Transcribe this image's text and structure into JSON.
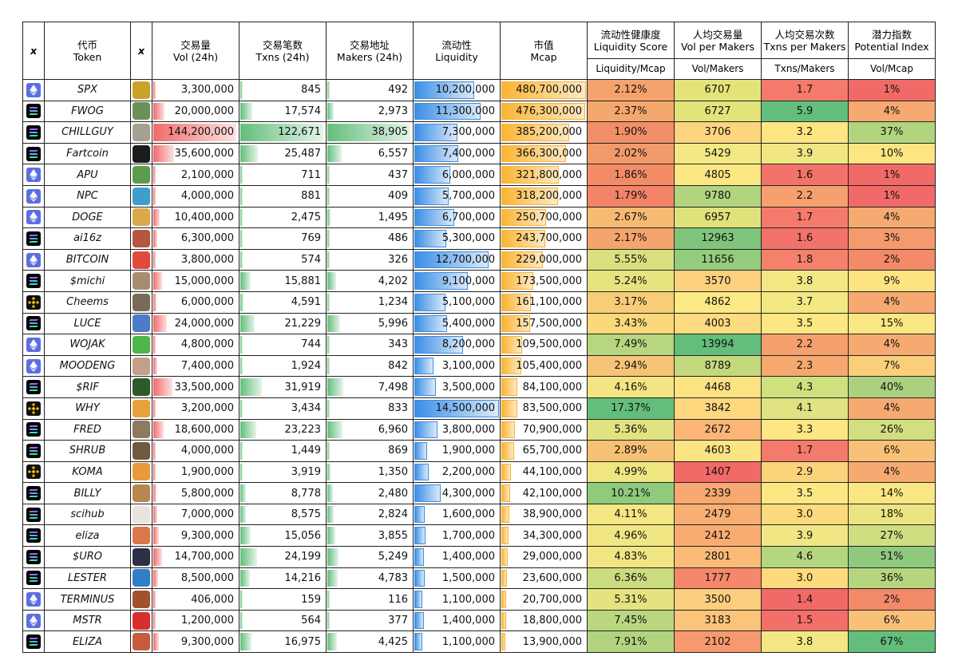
{
  "headers": {
    "chain": "x",
    "token": [
      "代币",
      "Token"
    ],
    "logo": "x",
    "vol": [
      "交易量",
      "Vol (24h)"
    ],
    "txns": [
      "交易笔数",
      "Txns (24h)"
    ],
    "makers": [
      "交易地址",
      "Makers (24h)"
    ],
    "liq": [
      "流动性",
      "Liquidity"
    ],
    "mcap": [
      "市值",
      "Mcap"
    ],
    "score": [
      "流动性健康度",
      "Liquidity Score"
    ],
    "vpm": [
      "人均交易量",
      "Vol per Makers"
    ],
    "tpm": [
      "人均交易次数",
      "Txns per Makers"
    ],
    "pot": [
      "潜力指数",
      "Potential Index"
    ],
    "formula": {
      "score": "Liquidity/Mcap",
      "vpm": "Vol/Makers",
      "tpm": "Txns/Makers",
      "pot": "Vol/Mcap"
    }
  },
  "rows": [
    {
      "chain": "eth",
      "token": "SPX",
      "logo_color": "#c9a227",
      "vol": "3,300,000",
      "vol_n": 3300000,
      "txns": "845",
      "txns_n": 845,
      "makers": "492",
      "makers_n": 492,
      "liq": "10,200,000",
      "liq_n": 10200000,
      "mcap": "480,700,000",
      "mcap_n": 480700000,
      "score": "2.12%",
      "score_color": "#f4a36c",
      "vpm": "6707",
      "vpm_color": "#e3e37a",
      "tpm": "1.7",
      "tpm_color": "#f47a6c",
      "pot": "1%",
      "pot_color": "#f26a68"
    },
    {
      "chain": "sol",
      "token": "FWOG",
      "logo_color": "#6b8f56",
      "vol": "20,000,000",
      "vol_n": 20000000,
      "txns": "17,574",
      "txns_n": 17574,
      "makers": "2,973",
      "makers_n": 2973,
      "liq": "11,300,000",
      "liq_n": 11300000,
      "mcap": "476,300,000",
      "mcap_n": 476300000,
      "score": "2.37%",
      "score_color": "#f4a86d",
      "vpm": "6727",
      "vpm_color": "#e2e37a",
      "tpm": "5.9",
      "tpm_color": "#63be7b",
      "pot": "4%",
      "pot_color": "#f6a970"
    },
    {
      "chain": "sol",
      "token": "CHILLGUY",
      "logo_color": "#a5a092",
      "vol": "144,200,000",
      "vol_n": 144200000,
      "txns": "122,671",
      "txns_n": 122671,
      "makers": "38,905",
      "makers_n": 38905,
      "liq": "7,300,000",
      "liq_n": 7300000,
      "mcap": "385,200,000",
      "mcap_n": 385200000,
      "score": "1.90%",
      "score_color": "#f38f68",
      "vpm": "3706",
      "vpm_color": "#fdd57f",
      "tpm": "3.2",
      "tpm_color": "#fde582",
      "pot": "37%",
      "pot_color": "#b3d47f"
    },
    {
      "chain": "sol",
      "token": "Fartcoin",
      "logo_color": "#1c1c1c",
      "vol": "35,600,000",
      "vol_n": 35600000,
      "txns": "25,487",
      "txns_n": 25487,
      "makers": "6,557",
      "makers_n": 6557,
      "liq": "7,400,000",
      "liq_n": 7400000,
      "mcap": "366,300,000",
      "mcap_n": 366300000,
      "score": "2.02%",
      "score_color": "#f39a6a",
      "vpm": "5429",
      "vpm_color": "#f3e883",
      "tpm": "3.9",
      "tpm_color": "#f0e784",
      "pot": "10%",
      "pot_color": "#fde582"
    },
    {
      "chain": "eth",
      "token": "APU",
      "logo_color": "#5a9d4e",
      "vol": "2,100,000",
      "vol_n": 2100000,
      "txns": "711",
      "txns_n": 711,
      "makers": "437",
      "makers_n": 437,
      "liq": "6,000,000",
      "liq_n": 6000000,
      "mcap": "321,800,000",
      "mcap_n": 321800000,
      "score": "1.86%",
      "score_color": "#f38b67",
      "vpm": "4805",
      "vpm_color": "#fde783",
      "tpm": "1.6",
      "tpm_color": "#f3736a",
      "pot": "1%",
      "pot_color": "#f26a68"
    },
    {
      "chain": "eth",
      "token": "NPC",
      "logo_color": "#3ea0c8",
      "vol": "4,000,000",
      "vol_n": 4000000,
      "txns": "881",
      "txns_n": 881,
      "makers": "409",
      "makers_n": 409,
      "liq": "5,700,000",
      "liq_n": 5700000,
      "mcap": "318,200,000",
      "mcap_n": 318200000,
      "score": "1.79%",
      "score_color": "#f38467",
      "vpm": "9780",
      "vpm_color": "#b2d47f",
      "tpm": "2.2",
      "tpm_color": "#f6a06e",
      "pot": "1%",
      "pot_color": "#f26a68"
    },
    {
      "chain": "eth",
      "token": "DOGE",
      "logo_color": "#d9a94a",
      "vol": "10,400,000",
      "vol_n": 10400000,
      "txns": "2,475",
      "txns_n": 2475,
      "makers": "1,495",
      "makers_n": 1495,
      "liq": "6,700,000",
      "liq_n": 6700000,
      "mcap": "250,700,000",
      "mcap_n": 250700000,
      "score": "2.67%",
      "score_color": "#f6bb73",
      "vpm": "6957",
      "vpm_color": "#dfe27b",
      "tpm": "1.7",
      "tpm_color": "#f47a6c",
      "pot": "4%",
      "pot_color": "#f6a970"
    },
    {
      "chain": "sol",
      "token": "ai16z",
      "logo_color": "#b5563f",
      "vol": "6,300,000",
      "vol_n": 6300000,
      "txns": "769",
      "txns_n": 769,
      "makers": "486",
      "makers_n": 486,
      "liq": "5,300,000",
      "liq_n": 5300000,
      "mcap": "243,700,000",
      "mcap_n": 243700000,
      "score": "2.17%",
      "score_color": "#f4a56c",
      "vpm": "12963",
      "vpm_color": "#7fc67c",
      "tpm": "1.6",
      "tpm_color": "#f3736a",
      "pot": "3%",
      "pot_color": "#f49a6c"
    },
    {
      "chain": "eth",
      "token": "BITCOIN",
      "logo_color": "#e24a3b",
      "vol": "3,800,000",
      "vol_n": 3800000,
      "txns": "574",
      "txns_n": 574,
      "makers": "326",
      "makers_n": 326,
      "liq": "12,700,000",
      "liq_n": 12700000,
      "mcap": "229,000,000",
      "mcap_n": 229000000,
      "score": "5.55%",
      "score_color": "#d9e080",
      "vpm": "11656",
      "vpm_color": "#94cc7d",
      "tpm": "1.8",
      "tpm_color": "#f4816c",
      "pot": "2%",
      "pot_color": "#f38a6a"
    },
    {
      "chain": "sol",
      "token": "$michi",
      "logo_color": "#a68d72",
      "vol": "15,000,000",
      "vol_n": 15000000,
      "txns": "15,881",
      "txns_n": 15881,
      "makers": "4,202",
      "makers_n": 4202,
      "liq": "9,100,000",
      "liq_n": 9100000,
      "mcap": "173,500,000",
      "mcap_n": 173500000,
      "score": "5.24%",
      "score_color": "#e7e480",
      "vpm": "3570",
      "vpm_color": "#fdd07e",
      "tpm": "3.8",
      "tpm_color": "#f2e783",
      "pot": "9%",
      "pot_color": "#fde382"
    },
    {
      "chain": "bnb",
      "token": "Cheems",
      "logo_color": "#7a6a5a",
      "vol": "6,000,000",
      "vol_n": 6000000,
      "txns": "4,591",
      "txns_n": 4591,
      "makers": "1,234",
      "makers_n": 1234,
      "liq": "5,100,000",
      "liq_n": 5100000,
      "mcap": "161,100,000",
      "mcap_n": 161100000,
      "score": "3.17%",
      "score_color": "#f9cd78",
      "vpm": "4862",
      "vpm_color": "#fde983",
      "tpm": "3.7",
      "tpm_color": "#f4e883",
      "pot": "4%",
      "pot_color": "#f6a970"
    },
    {
      "chain": "sol",
      "token": "LUCE",
      "logo_color": "#4c7cc9",
      "vol": "24,000,000",
      "vol_n": 24000000,
      "txns": "21,229",
      "txns_n": 21229,
      "makers": "5,996",
      "makers_n": 5996,
      "liq": "5,400,000",
      "liq_n": 5400000,
      "mcap": "157,500,000",
      "mcap_n": 157500000,
      "score": "3.43%",
      "score_color": "#fbd87a",
      "vpm": "4003",
      "vpm_color": "#fddc80",
      "tpm": "3.5",
      "tpm_color": "#fbe883",
      "pot": "15%",
      "pot_color": "#f9e783"
    },
    {
      "chain": "eth",
      "token": "WOJAK",
      "logo_color": "#4fb64a",
      "vol": "4,800,000",
      "vol_n": 4800000,
      "txns": "744",
      "txns_n": 744,
      "makers": "343",
      "makers_n": 343,
      "liq": "8,200,000",
      "liq_n": 8200000,
      "mcap": "109,500,000",
      "mcap_n": 109500000,
      "score": "7.49%",
      "score_color": "#b8d67f",
      "vpm": "13994",
      "vpm_color": "#63be7b",
      "tpm": "2.2",
      "tpm_color": "#f6a06e",
      "pot": "4%",
      "pot_color": "#f6a970"
    },
    {
      "chain": "eth",
      "token": "MOODENG",
      "logo_color": "#c4a08b",
      "vol": "7,400,000",
      "vol_n": 7400000,
      "txns": "1,924",
      "txns_n": 1924,
      "makers": "842",
      "makers_n": 842,
      "liq": "3,100,000",
      "liq_n": 3100000,
      "mcap": "105,400,000",
      "mcap_n": 105400000,
      "score": "2.94%",
      "score_color": "#f7c375",
      "vpm": "8789",
      "vpm_color": "#c4d97e",
      "tpm": "2.3",
      "tpm_color": "#f6a86f",
      "pot": "7%",
      "pot_color": "#fbcf7a"
    },
    {
      "chain": "sol",
      "token": "$RIF",
      "logo_color": "#2d5a2a",
      "vol": "33,500,000",
      "vol_n": 33500000,
      "txns": "31,919",
      "txns_n": 31919,
      "makers": "7,498",
      "makers_n": 7498,
      "liq": "3,500,000",
      "liq_n": 3500000,
      "mcap": "84,100,000",
      "mcap_n": 84100000,
      "score": "4.16%",
      "score_color": "#f3e584",
      "vpm": "4468",
      "vpm_color": "#fde282",
      "tpm": "4.3",
      "tpm_color": "#cfe07f",
      "pot": "40%",
      "pot_color": "#abd17e"
    },
    {
      "chain": "bnb",
      "token": "WHY",
      "logo_color": "#e8a23a",
      "vol": "3,200,000",
      "vol_n": 3200000,
      "txns": "3,434",
      "txns_n": 3434,
      "makers": "833",
      "makers_n": 833,
      "liq": "14,500,000",
      "liq_n": 14500000,
      "mcap": "83,500,000",
      "mcap_n": 83500000,
      "score": "17.37%",
      "score_color": "#63be7b",
      "vpm": "3842",
      "vpm_color": "#fdd87f",
      "tpm": "4.1",
      "tpm_color": "#dfe381",
      "pot": "4%",
      "pot_color": "#f6a970"
    },
    {
      "chain": "sol",
      "token": "FRED",
      "logo_color": "#8c7a63",
      "vol": "18,600,000",
      "vol_n": 18600000,
      "txns": "23,223",
      "txns_n": 23223,
      "makers": "6,960",
      "makers_n": 6960,
      "liq": "3,800,000",
      "liq_n": 3800000,
      "mcap": "70,900,000",
      "mcap_n": 70900000,
      "score": "5.36%",
      "score_color": "#e2e280",
      "vpm": "2672",
      "vpm_color": "#fbb676",
      "tpm": "3.3",
      "tpm_color": "#fde683",
      "pot": "26%",
      "pot_color": "#d3de80"
    },
    {
      "chain": "sol",
      "token": "SHRUB",
      "logo_color": "#6e5a3f",
      "vol": "4,000,000",
      "vol_n": 4000000,
      "txns": "1,449",
      "txns_n": 1449,
      "makers": "869",
      "makers_n": 869,
      "liq": "1,900,000",
      "liq_n": 1900000,
      "mcap": "65,700,000",
      "mcap_n": 65700000,
      "score": "2.89%",
      "score_color": "#f7c174",
      "vpm": "4603",
      "vpm_color": "#fde482",
      "tpm": "1.7",
      "tpm_color": "#f47a6c",
      "pot": "6%",
      "pot_color": "#f9c077"
    },
    {
      "chain": "bnb",
      "token": "KOMA",
      "logo_color": "#e79a3e",
      "vol": "1,900,000",
      "vol_n": 1900000,
      "txns": "3,919",
      "txns_n": 3919,
      "makers": "1,350",
      "makers_n": 1350,
      "liq": "2,200,000",
      "liq_n": 2200000,
      "mcap": "44,100,000",
      "mcap_n": 44100000,
      "score": "4.99%",
      "score_color": "#efe682",
      "vpm": "1407",
      "vpm_color": "#f26a68",
      "tpm": "2.9",
      "tpm_color": "#fbd37b",
      "pot": "4%",
      "pot_color": "#f6a970"
    },
    {
      "chain": "sol",
      "token": "BILLY",
      "logo_color": "#b8874f",
      "vol": "5,800,000",
      "vol_n": 5800000,
      "txns": "8,778",
      "txns_n": 8778,
      "makers": "2,480",
      "makers_n": 2480,
      "liq": "4,300,000",
      "liq_n": 4300000,
      "mcap": "42,100,000",
      "mcap_n": 42100000,
      "score": "10.21%",
      "score_color": "#8fca7d",
      "vpm": "2339",
      "vpm_color": "#f8a870",
      "tpm": "3.5",
      "tpm_color": "#fbe883",
      "pot": "14%",
      "pot_color": "#fae783"
    },
    {
      "chain": "sol",
      "token": "scihub",
      "logo_color": "#e8e3dc",
      "vol": "7,000,000",
      "vol_n": 7000000,
      "txns": "8,575",
      "txns_n": 8575,
      "makers": "2,824",
      "makers_n": 2824,
      "liq": "1,600,000",
      "liq_n": 1600000,
      "mcap": "38,900,000",
      "mcap_n": 38900000,
      "score": "4.11%",
      "score_color": "#f5e684",
      "vpm": "2479",
      "vpm_color": "#f9af73",
      "tpm": "3.0",
      "tpm_color": "#fcda7d",
      "pot": "18%",
      "pot_color": "#eae582"
    },
    {
      "chain": "sol",
      "token": "eliza",
      "logo_color": "#d9784a",
      "vol": "9,300,000",
      "vol_n": 9300000,
      "txns": "15,056",
      "txns_n": 15056,
      "makers": "3,855",
      "makers_n": 3855,
      "liq": "1,700,000",
      "liq_n": 1700000,
      "mcap": "34,300,000",
      "mcap_n": 34300000,
      "score": "4.96%",
      "score_color": "#f0e683",
      "vpm": "2412",
      "vpm_color": "#f9ac72",
      "tpm": "3.9",
      "tpm_color": "#f0e784",
      "pot": "27%",
      "pot_color": "#d0dd80"
    },
    {
      "chain": "sol",
      "token": "$URO",
      "logo_color": "#2c2f45",
      "vol": "14,700,000",
      "vol_n": 14700000,
      "txns": "24,199",
      "txns_n": 24199,
      "makers": "5,249",
      "makers_n": 5249,
      "liq": "1,400,000",
      "liq_n": 1400000,
      "mcap": "29,000,000",
      "mcap_n": 29000000,
      "score": "4.83%",
      "score_color": "#f1e683",
      "vpm": "2801",
      "vpm_color": "#fbbb77",
      "tpm": "4.6",
      "tpm_color": "#b4d67e",
      "pot": "51%",
      "pot_color": "#8fc97d"
    },
    {
      "chain": "sol",
      "token": "LESTER",
      "logo_color": "#2f7ec6",
      "vol": "8,500,000",
      "vol_n": 8500000,
      "txns": "14,216",
      "txns_n": 14216,
      "makers": "4,783",
      "makers_n": 4783,
      "liq": "1,500,000",
      "liq_n": 1500000,
      "mcap": "23,600,000",
      "mcap_n": 23600000,
      "score": "6.36%",
      "score_color": "#cbdb7f",
      "vpm": "1777",
      "vpm_color": "#f5876b",
      "tpm": "3.0",
      "tpm_color": "#fcda7d",
      "pot": "36%",
      "pot_color": "#b6d57f"
    },
    {
      "chain": "eth",
      "token": "TERMINUS",
      "logo_color": "#a2512e",
      "vol": "406,000",
      "vol_n": 406000,
      "txns": "159",
      "txns_n": 159,
      "makers": "116",
      "makers_n": 116,
      "liq": "1,100,000",
      "liq_n": 1100000,
      "mcap": "20,700,000",
      "mcap_n": 20700000,
      "score": "5.31%",
      "score_color": "#e4e380",
      "vpm": "3500",
      "vpm_color": "#fcce7e",
      "tpm": "1.4",
      "tpm_color": "#f26a68",
      "pot": "2%",
      "pot_color": "#f38a6a"
    },
    {
      "chain": "eth",
      "token": "MSTR",
      "logo_color": "#d92e2e",
      "vol": "1,200,000",
      "vol_n": 1200000,
      "txns": "564",
      "txns_n": 564,
      "makers": "377",
      "makers_n": 377,
      "liq": "1,400,000",
      "liq_n": 1400000,
      "mcap": "18,800,000",
      "mcap_n": 18800000,
      "score": "7.45%",
      "score_color": "#bad67f",
      "vpm": "3183",
      "vpm_color": "#fcc47a",
      "tpm": "1.5",
      "tpm_color": "#f36f69",
      "pot": "6%",
      "pot_color": "#f9c077"
    },
    {
      "chain": "sol",
      "token": "ELIZA",
      "logo_color": "#c65b3e",
      "vol": "9,300,000",
      "vol_n": 9300000,
      "txns": "16,975",
      "txns_n": 16975,
      "makers": "4,425",
      "makers_n": 4425,
      "liq": "1,100,000",
      "liq_n": 1100000,
      "mcap": "13,900,000",
      "mcap_n": 13900000,
      "score": "7.91%",
      "score_color": "#b2d47f",
      "vpm": "2102",
      "vpm_color": "#f7986e",
      "tpm": "3.8",
      "tpm_color": "#f2e783",
      "pot": "67%",
      "pot_color": "#63be7b"
    }
  ]
}
